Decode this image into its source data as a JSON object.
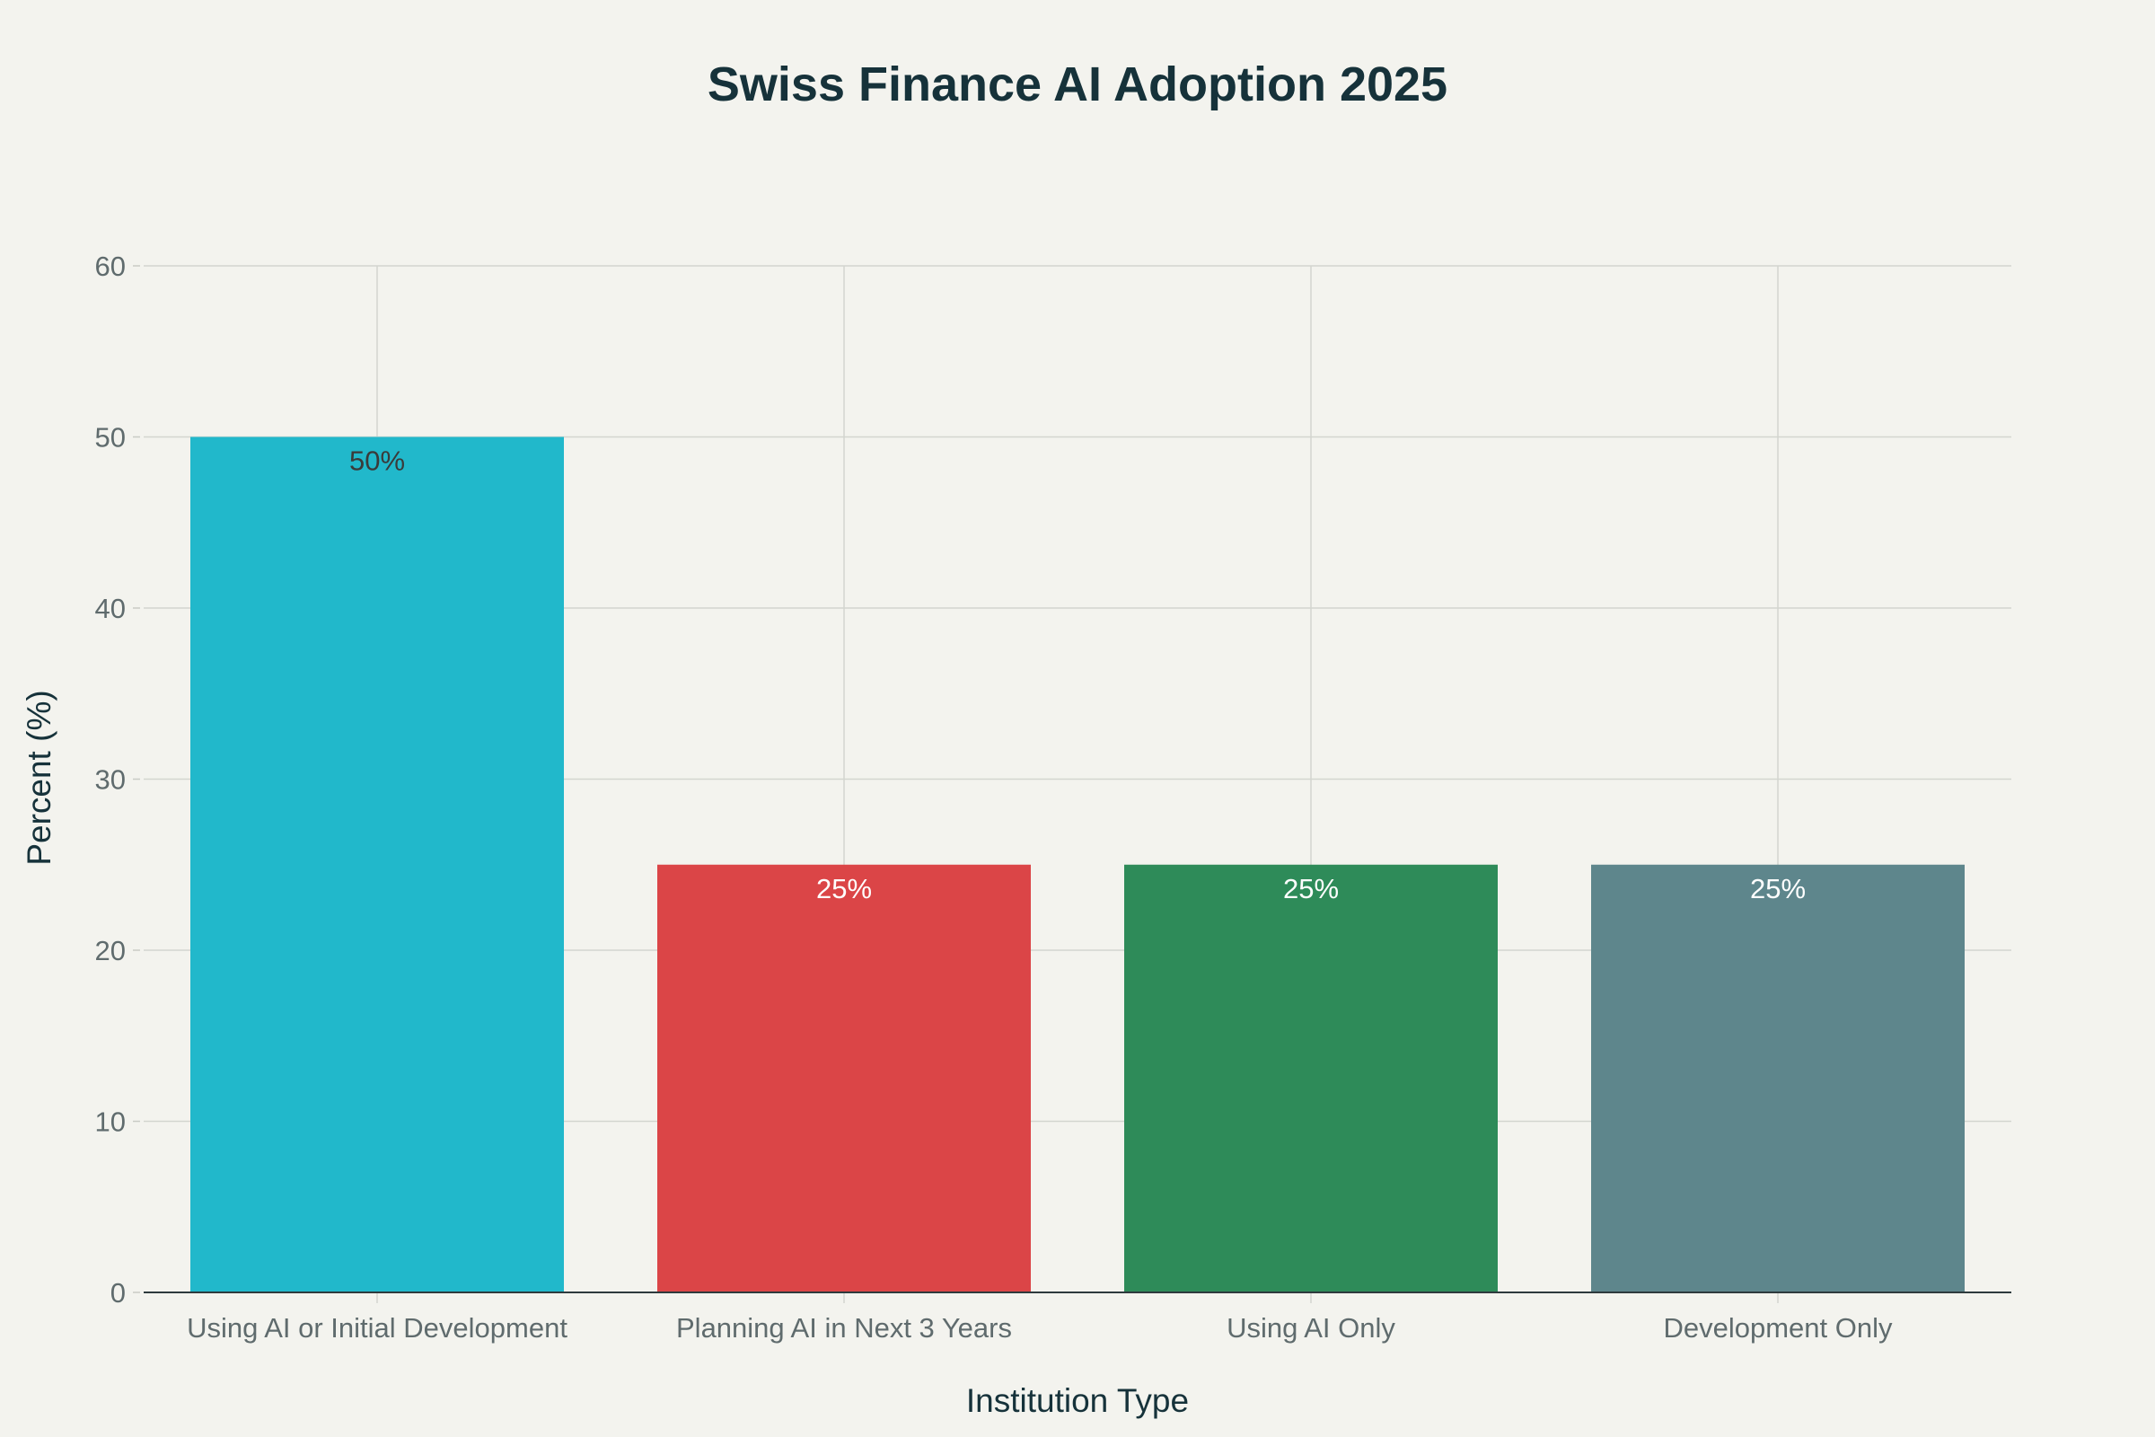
{
  "chart_data": {
    "type": "bar",
    "title": "Swiss Finance AI Adoption 2025",
    "xlabel": "Institution Type",
    "ylabel": "Percent (%)",
    "ylim": [
      0,
      60
    ],
    "yticks": [
      0,
      10,
      20,
      30,
      40,
      50,
      60
    ],
    "categories": [
      "Using AI or Initial Development",
      "Planning AI in Next 3 Years",
      "Using AI Only",
      "Development Only"
    ],
    "values": [
      50,
      25,
      25,
      25
    ],
    "data_labels": [
      "50%",
      "25%",
      "25%",
      "25%"
    ],
    "colors": [
      "#21b8cb",
      "#db4547",
      "#2e8b59",
      "#5e868c"
    ],
    "label_colors": [
      "#3a3a3a",
      "#ffffff",
      "#ffffff",
      "#ffffff"
    ],
    "grid": true,
    "legend": "none"
  }
}
